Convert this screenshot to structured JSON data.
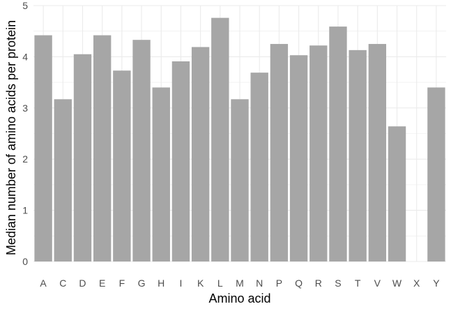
{
  "chart_data": {
    "type": "bar",
    "title": "",
    "xlabel": "Amino acid",
    "ylabel": "Median number of amino acids per protein",
    "ylim": [
      0,
      5
    ],
    "yticks": [
      0,
      1,
      2,
      3,
      4,
      5
    ],
    "categories": [
      "A",
      "C",
      "D",
      "E",
      "F",
      "G",
      "H",
      "I",
      "K",
      "L",
      "M",
      "N",
      "P",
      "Q",
      "R",
      "S",
      "T",
      "V",
      "W",
      "X",
      "Y"
    ],
    "values": [
      4.42,
      3.17,
      4.05,
      4.42,
      3.73,
      4.33,
      3.4,
      3.91,
      4.19,
      4.76,
      3.17,
      3.69,
      4.25,
      4.03,
      4.22,
      4.59,
      4.13,
      4.25,
      2.64,
      0,
      3.4
    ],
    "bar_color": "#a6a6a6",
    "grid": true,
    "grid_color": "#ebebeb",
    "legend": "none"
  }
}
